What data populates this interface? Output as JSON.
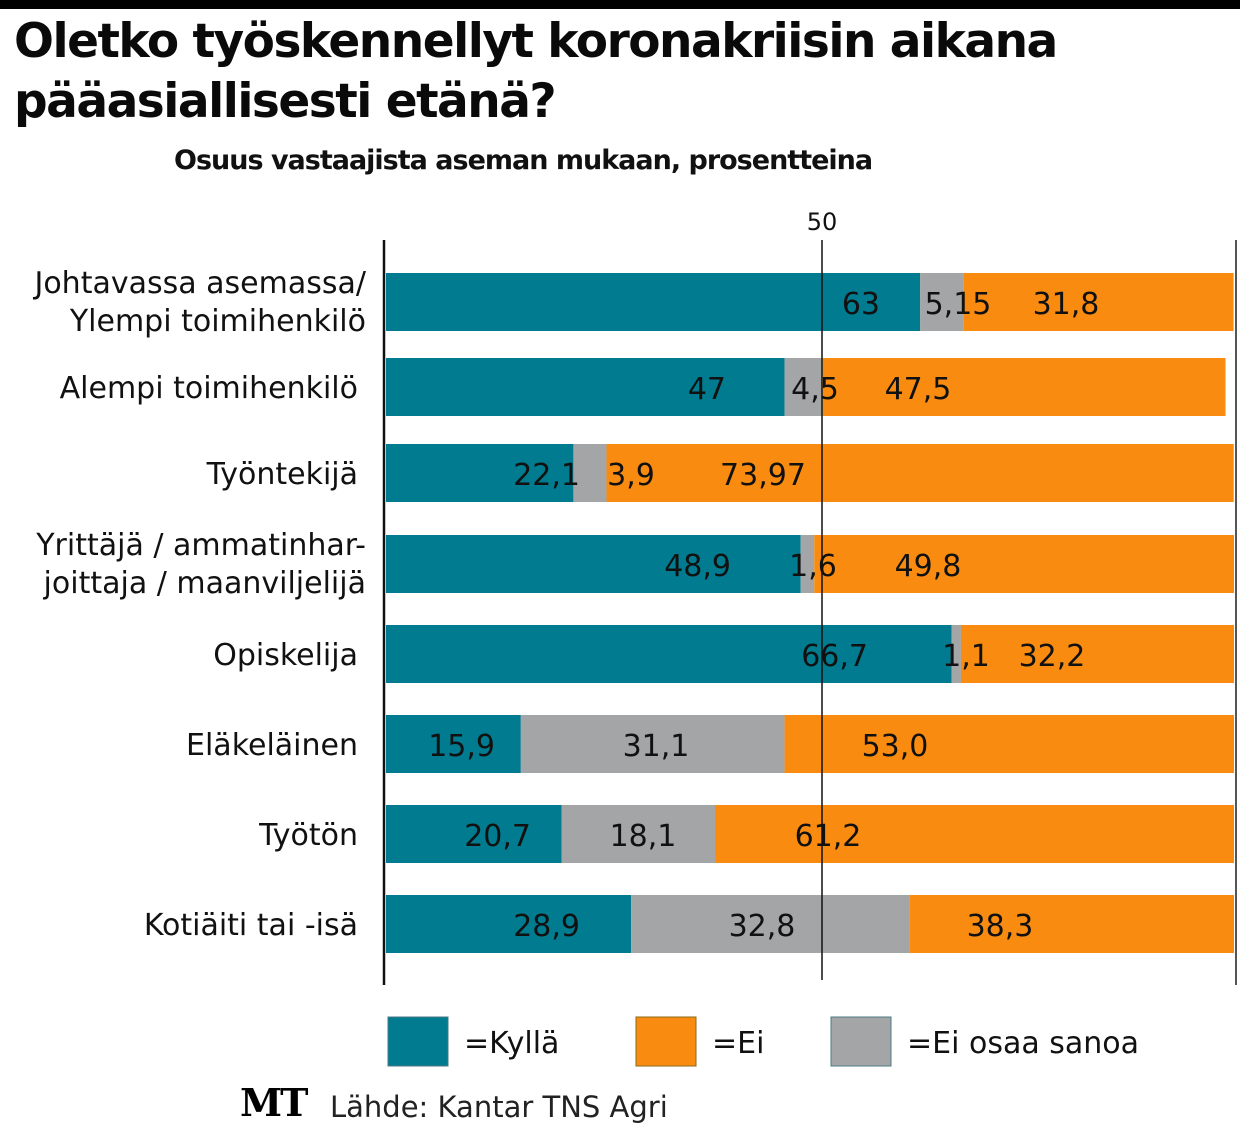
{
  "title": "Oletko työskennellyt koronakriisin aikana pääasiallisesti etänä?",
  "subtitle": "Osuus vastaajista aseman mukaan, prosentteina",
  "colors": {
    "kylla": "#007b8f",
    "ei": "#f98c10",
    "eos": "#a3a5a6"
  },
  "logo": "MT",
  "source": "Lähde: Kantar TNS Agri",
  "chart_data": {
    "type": "bar",
    "orientation": "horizontal",
    "stacked": true,
    "title": "Oletko työskennellyt koronakriisin aikana pääasiallisesti etänä?",
    "subtitle": "Osuus vastaajista aseman mukaan, prosentteina",
    "xlim": [
      0,
      100
    ],
    "xticks": [
      "50"
    ],
    "grid": true,
    "legend_position": "bottom",
    "categories": [
      [
        "Johtavassa asemassa/",
        "Ylempi toimihenkilö"
      ],
      [
        "Alempi toimihenkilö"
      ],
      [
        "Työntekijä"
      ],
      [
        "Yrittäjä / ammatinhar-",
        "joittaja / maanviljelijä"
      ],
      [
        "Opiskelija"
      ],
      [
        "Eläkeläinen"
      ],
      [
        "Työtön"
      ],
      [
        "Kotiäiti tai -isä"
      ]
    ],
    "series": [
      {
        "name": "=Kyllä",
        "key": "kylla",
        "values": [
          63,
          47,
          22.1,
          48.9,
          66.7,
          15.9,
          20.7,
          28.9
        ],
        "labels": [
          "63",
          "47",
          "22,1",
          "48,9",
          "66,7",
          "15,9",
          "20,7",
          "28,9"
        ]
      },
      {
        "name": "=Ei osaa sanoa",
        "key": "eos",
        "values": [
          5.15,
          4.5,
          3.9,
          1.6,
          1.1,
          31.1,
          18.1,
          32.8
        ],
        "labels": [
          "5,15",
          "4,5",
          "3,9",
          "1,6",
          "1,1",
          "31,1",
          "18,1",
          "32,8"
        ]
      },
      {
        "name": "=Ei",
        "key": "ei",
        "values": [
          31.8,
          47.5,
          73.97,
          49.8,
          32.2,
          53.0,
          61.2,
          38.3
        ],
        "labels": [
          "31,8",
          "47,5",
          "73,97",
          "49,8",
          "32,2",
          "53,0",
          "61,2",
          "38,3"
        ]
      }
    ],
    "legend": [
      {
        "label": "=Kyllä",
        "key": "kylla"
      },
      {
        "label": "=Ei",
        "key": "ei"
      },
      {
        "label": "=Ei osaa sanoa",
        "key": "eos"
      }
    ]
  }
}
